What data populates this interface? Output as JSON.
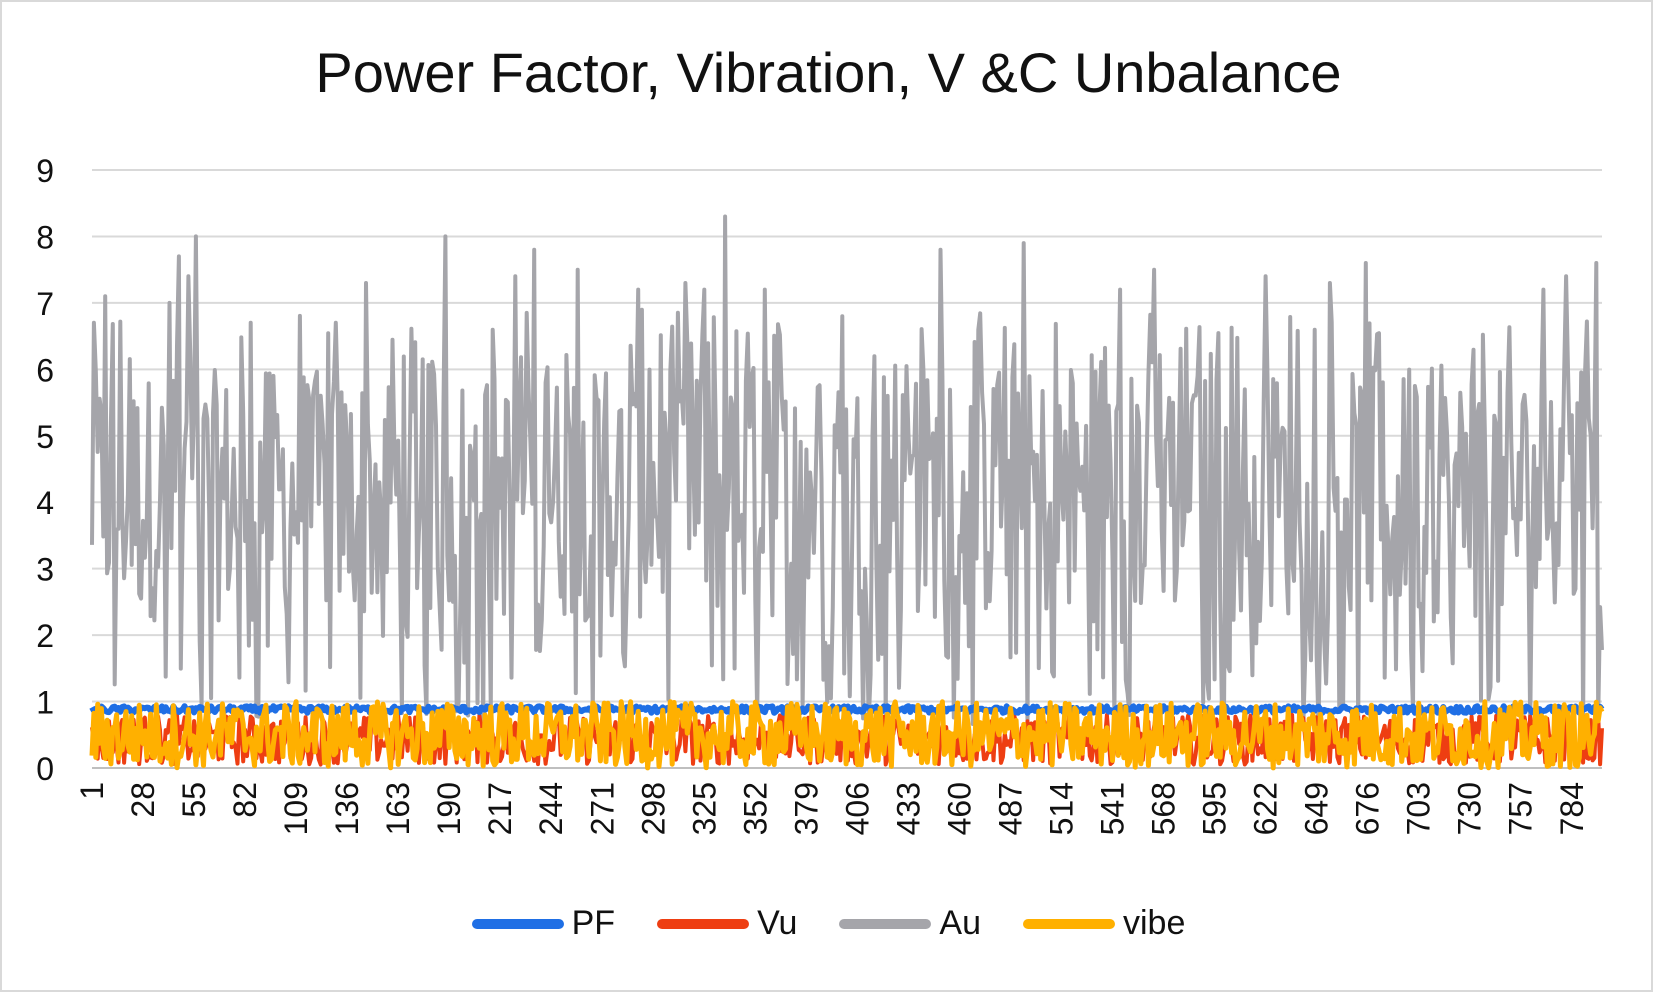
{
  "chart_data": {
    "type": "line",
    "title": "Power Factor, Vibration, V &C Unbalance",
    "xlabel": "",
    "ylabel": "",
    "x_range": [
      1,
      800
    ],
    "ylim": [
      0,
      9
    ],
    "y_ticks": [
      "0",
      "1",
      "2",
      "3",
      "4",
      "5",
      "6",
      "7",
      "8",
      "9"
    ],
    "x_tick_labels": [
      "1",
      "28",
      "55",
      "82",
      "109",
      "136",
      "163",
      "190",
      "217",
      "244",
      "271",
      "298",
      "325",
      "352",
      "379",
      "406",
      "433",
      "460",
      "487",
      "514",
      "541",
      "568",
      "595",
      "622",
      "649",
      "676",
      "703",
      "730",
      "757",
      "784"
    ],
    "grid": true,
    "legend_position": "bottom",
    "series": [
      {
        "name": "PF",
        "color": "#1f6fe5",
        "approx": {
          "min": 0.83,
          "max": 0.93,
          "typical": 0.88
        }
      },
      {
        "name": "Vu",
        "color": "#ee3e12",
        "approx": {
          "min": 0.05,
          "max": 0.8,
          "typical": 0.3
        }
      },
      {
        "name": "Au",
        "color": "#a5a5aa",
        "approx": {
          "min": 0.6,
          "max": 8.3,
          "typical": 4.0
        },
        "peaks": [
          {
            "x": 2,
            "y": 6.7
          },
          {
            "x": 8,
            "y": 7.1
          },
          {
            "x": 42,
            "y": 7.0
          },
          {
            "x": 47,
            "y": 7.7
          },
          {
            "x": 52,
            "y": 7.4
          },
          {
            "x": 56,
            "y": 8.0
          },
          {
            "x": 85,
            "y": 6.7
          },
          {
            "x": 130,
            "y": 6.7
          },
          {
            "x": 146,
            "y": 7.3
          },
          {
            "x": 188,
            "y": 8.0
          },
          {
            "x": 225,
            "y": 7.4
          },
          {
            "x": 235,
            "y": 7.8
          },
          {
            "x": 258,
            "y": 7.5
          },
          {
            "x": 290,
            "y": 7.2
          },
          {
            "x": 315,
            "y": 7.3
          },
          {
            "x": 325,
            "y": 7.2
          },
          {
            "x": 336,
            "y": 8.3
          },
          {
            "x": 357,
            "y": 7.2
          },
          {
            "x": 398,
            "y": 6.8
          },
          {
            "x": 450,
            "y": 7.8
          },
          {
            "x": 494,
            "y": 7.9
          },
          {
            "x": 545,
            "y": 7.2
          },
          {
            "x": 563,
            "y": 7.5
          },
          {
            "x": 622,
            "y": 7.4
          },
          {
            "x": 656,
            "y": 7.3
          },
          {
            "x": 675,
            "y": 7.6
          },
          {
            "x": 769,
            "y": 7.2
          },
          {
            "x": 781,
            "y": 7.4
          },
          {
            "x": 797,
            "y": 7.6
          }
        ]
      },
      {
        "name": "vibe",
        "color": "#ffb000",
        "approx": {
          "min": 0.0,
          "max": 1.0,
          "typical": 0.45
        }
      }
    ]
  }
}
